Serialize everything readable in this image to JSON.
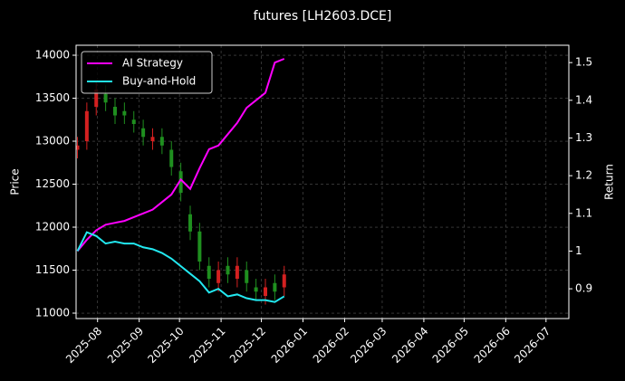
{
  "chart_data": {
    "type": "candlestick_returns",
    "title": "futures [LH2603.DCE]",
    "y_label": "Price",
    "y2_label": "Return",
    "x": [
      "2025-07-17",
      "2025-07-24",
      "2025-07-31",
      "2025-08-07",
      "2025-08-14",
      "2025-08-21",
      "2025-08-28",
      "2025-09-04",
      "2025-09-11",
      "2025-09-18",
      "2025-09-25",
      "2025-10-02",
      "2025-10-09",
      "2025-10-16",
      "2025-10-23",
      "2025-10-30",
      "2025-11-06",
      "2025-11-13",
      "2025-11-20",
      "2025-11-27",
      "2025-12-04",
      "2025-12-11",
      "2025-12-18"
    ],
    "candles": {
      "up_color": "#d42020",
      "down_color": "#1f8f1f",
      "open": [
        12900,
        13000,
        13400,
        13550,
        13400,
        13350,
        13250,
        13150,
        13000,
        13050,
        12900,
        12650,
        12150,
        11950,
        11550,
        11350,
        11550,
        11400,
        11500,
        11300,
        11200,
        11350,
        11300
      ],
      "high": [
        13050,
        13450,
        13700,
        13650,
        13500,
        13450,
        13350,
        13250,
        13150,
        13150,
        13000,
        12750,
        12250,
        12050,
        11650,
        11600,
        11650,
        11650,
        11600,
        11400,
        11400,
        11450,
        11550
      ],
      "low": [
        12800,
        12900,
        13300,
        13350,
        13200,
        13200,
        13100,
        12950,
        12900,
        12850,
        12600,
        12300,
        11850,
        11500,
        11300,
        11250,
        11350,
        11300,
        11250,
        11150,
        11100,
        11150,
        11200
      ],
      "close": [
        12950,
        13350,
        13600,
        13450,
        13300,
        13300,
        13200,
        13050,
        13050,
        12950,
        12700,
        12400,
        11950,
        11600,
        11400,
        11500,
        11450,
        11550,
        11350,
        11250,
        11300,
        11250,
        11450
      ]
    },
    "series": [
      {
        "name": "AI Strategy",
        "color": "#ff00ff",
        "axis": "y2",
        "values": [
          1.0,
          1.03,
          1.055,
          1.07,
          1.075,
          1.08,
          1.09,
          1.1,
          1.11,
          1.13,
          1.15,
          1.19,
          1.165,
          1.22,
          1.27,
          1.28,
          1.31,
          1.34,
          1.38,
          1.4,
          1.42,
          1.5,
          1.51
        ]
      },
      {
        "name": "Buy-and-Hold",
        "color": "#22e8f0",
        "axis": "y2",
        "values": [
          1.0,
          1.05,
          1.04,
          1.02,
          1.025,
          1.02,
          1.02,
          1.01,
          1.005,
          0.995,
          0.98,
          0.96,
          0.94,
          0.92,
          0.89,
          0.9,
          0.88,
          0.885,
          0.875,
          0.87,
          0.87,
          0.865,
          0.88
        ]
      }
    ],
    "xlim": [
      "2025-07-16",
      "2026-07-18"
    ],
    "xticks": [
      "2025-08",
      "2025-09",
      "2025-10",
      "2025-11",
      "2025-12",
      "2026-01",
      "2026-02",
      "2026-03",
      "2026-04",
      "2026-05",
      "2026-06",
      "2026-07"
    ],
    "ylim": [
      10937,
      14116
    ],
    "yticks": [
      11000,
      11500,
      12000,
      12500,
      13000,
      13500,
      14000
    ],
    "y2lim": [
      0.821,
      1.546
    ],
    "y2ticks": [
      0.9,
      1.0,
      1.1,
      1.2,
      1.3,
      1.4,
      1.5
    ],
    "grid": true,
    "legend": "upper left"
  }
}
